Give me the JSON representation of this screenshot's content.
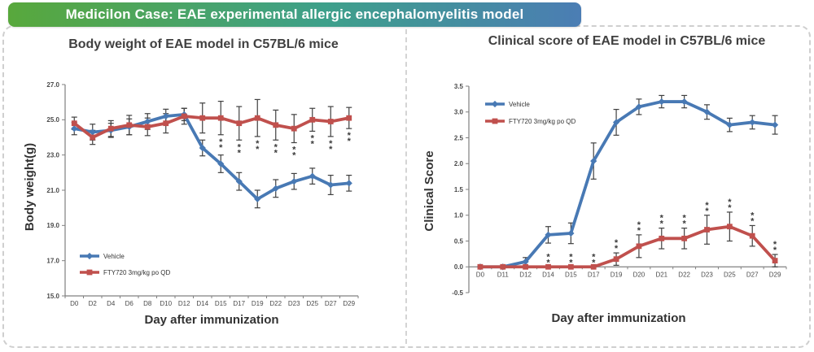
{
  "banner": {
    "text": "Medicilon Case: EAE experimental allergic encephalomyelitis model",
    "gradient_start": "#58a83c",
    "gradient_mid": "#3ea08a",
    "gradient_end": "#4b7db4",
    "text_color": "#ffffff"
  },
  "figure": {
    "border_color": "#cfcfcf",
    "background": "#ffffff",
    "error_bar_color": "#404040",
    "significance_color": "#3a3a3a"
  },
  "chart_data": [
    {
      "type": "line",
      "title": "Body weight of EAE model in C57BL/6 mice",
      "xlabel": "Day after immunization",
      "ylabel": "Body weight(g)",
      "ymin": 15.0,
      "ymax": 27.0,
      "ystep": 2.0,
      "y_decimals": 1,
      "x_axis_cross": 15.0,
      "grid": false,
      "legend_position": "bottom-left",
      "categories": [
        "D0",
        "D2",
        "D4",
        "D6",
        "D8",
        "D10",
        "D12",
        "D14",
        "D15",
        "D17",
        "D19",
        "D22",
        "D23",
        "D25",
        "D27",
        "D29"
      ],
      "series": [
        {
          "name": "Vehicle",
          "color": "#4879B4",
          "marker": "diamond",
          "values": [
            24.5,
            24.3,
            24.4,
            24.6,
            24.9,
            25.2,
            25.3,
            23.4,
            22.5,
            21.5,
            20.5,
            21.1,
            21.5,
            21.8,
            21.3,
            21.4
          ],
          "errors": [
            0.35,
            0.45,
            0.4,
            0.45,
            0.45,
            0.4,
            0.35,
            0.45,
            0.5,
            0.5,
            0.5,
            0.5,
            0.45,
            0.45,
            0.55,
            0.45
          ]
        },
        {
          "name": "FTY720 3mg/kg po QD",
          "color": "#C0504D",
          "marker": "square",
          "values": [
            24.8,
            24.0,
            24.5,
            24.7,
            24.6,
            24.8,
            25.2,
            25.1,
            25.1,
            24.8,
            25.1,
            24.7,
            24.5,
            25.0,
            24.9,
            25.1
          ],
          "errors": [
            0.35,
            0.4,
            0.45,
            0.55,
            0.5,
            0.55,
            0.45,
            0.85,
            0.95,
            0.95,
            1.05,
            0.85,
            0.8,
            0.65,
            0.85,
            0.6
          ]
        }
      ],
      "significance": {
        "symbol": "**",
        "series": "FTY720 3mg/kg po QD",
        "placement": "below",
        "category_indices": [
          8,
          9,
          10,
          11,
          12,
          13,
          14,
          15
        ],
        "categories_marked": [
          "D15",
          "D17",
          "D19",
          "D22",
          "D23",
          "D25",
          "D27",
          "D29"
        ]
      }
    },
    {
      "type": "line",
      "title": "Clinical score of EAE model in C57BL/6 mice",
      "xlabel": "Day after immunization",
      "ylabel": "Clinical Score",
      "ymin": -0.5,
      "ymax": 3.5,
      "ystep": 0.5,
      "y_decimals": 1,
      "x_axis_cross": 0.0,
      "grid": false,
      "legend_position": "top-left",
      "categories": [
        "D0",
        "D11",
        "D12",
        "D14",
        "D15",
        "D17",
        "D19",
        "D20",
        "D21",
        "D22",
        "D23",
        "D25",
        "D27",
        "D29"
      ],
      "series": [
        {
          "name": "Vehicle",
          "color": "#4879B4",
          "marker": "diamond",
          "values": [
            0.0,
            0.0,
            0.1,
            0.62,
            0.65,
            2.05,
            2.8,
            3.1,
            3.2,
            3.2,
            3.0,
            2.75,
            2.8,
            2.75
          ],
          "errors": [
            0,
            0,
            0.08,
            0.16,
            0.2,
            0.35,
            0.25,
            0.15,
            0.12,
            0.12,
            0.14,
            0.13,
            0.13,
            0.18
          ]
        },
        {
          "name": "FTY720 3mg/kg po QD",
          "color": "#C0504D",
          "marker": "square",
          "values": [
            0.0,
            0.0,
            0.0,
            0.0,
            0.0,
            0.0,
            0.15,
            0.4,
            0.55,
            0.55,
            0.72,
            0.78,
            0.6,
            0.12
          ],
          "errors": [
            0,
            0,
            0,
            0,
            0,
            0,
            0.12,
            0.22,
            0.2,
            0.2,
            0.28,
            0.28,
            0.2,
            0.12
          ]
        }
      ],
      "significance": {
        "symbol": "**",
        "series": "FTY720 3mg/kg po QD",
        "placement": "above",
        "category_indices": [
          3,
          4,
          5,
          6,
          7,
          8,
          9,
          10,
          11,
          12,
          13
        ],
        "categories_marked": [
          "D14",
          "D15",
          "D17",
          "D19",
          "D20",
          "D21",
          "D22",
          "D23",
          "D25",
          "D27",
          "D29"
        ]
      }
    }
  ]
}
